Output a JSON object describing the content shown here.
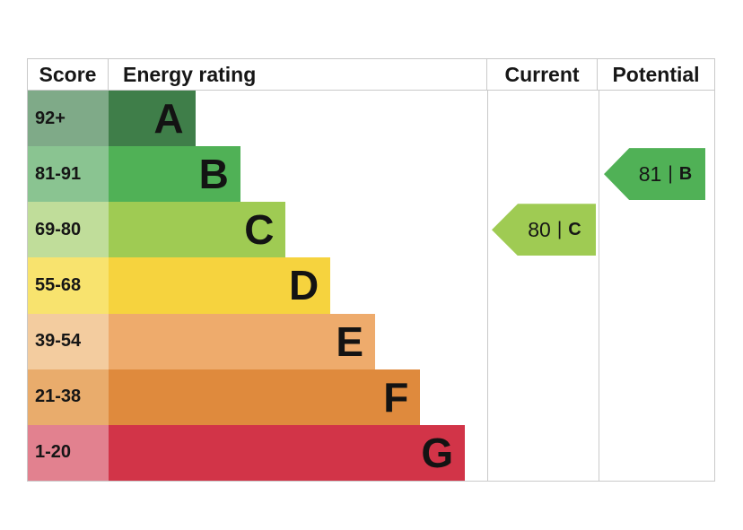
{
  "header": {
    "score": "Score",
    "rating": "Energy rating",
    "current": "Current",
    "potential": "Potential"
  },
  "bands": [
    {
      "score": "92+",
      "letter": "A",
      "width_pct": 22.9,
      "bar_color": "#3f7e49",
      "score_color": "#7faa88"
    },
    {
      "score": "81-91",
      "letter": "B",
      "width_pct": 34.8,
      "bar_color": "#50b156",
      "score_color": "#8ac491"
    },
    {
      "score": "69-80",
      "letter": "C",
      "width_pct": 46.8,
      "bar_color": "#9fcb53",
      "score_color": "#c0dd9a"
    },
    {
      "score": "55-68",
      "letter": "D",
      "width_pct": 58.6,
      "bar_color": "#f6d33e",
      "score_color": "#f8e36e"
    },
    {
      "score": "39-54",
      "letter": "E",
      "width_pct": 70.4,
      "bar_color": "#eeab6c",
      "score_color": "#f3cc9f"
    },
    {
      "score": "21-38",
      "letter": "F",
      "width_pct": 82.3,
      "bar_color": "#df8a3d",
      "score_color": "#e9ac6c"
    },
    {
      "score": "1-20",
      "letter": "G",
      "width_pct": 94.1,
      "bar_color": "#d23448",
      "score_color": "#e2818f"
    }
  ],
  "current": {
    "value": "80",
    "separator": "|",
    "letter": "C",
    "row": 2,
    "color": "#9fcb53"
  },
  "potential": {
    "value": "81",
    "separator": "|",
    "letter": "B",
    "row": 1,
    "color": "#50b156"
  },
  "border_color": "#c9c9c9",
  "chart_data": {
    "type": "bar",
    "title": "Energy rating",
    "orientation": "horizontal",
    "categories": [
      "A",
      "B",
      "C",
      "D",
      "E",
      "F",
      "G"
    ],
    "score_ranges": [
      "92+",
      "81-91",
      "69-80",
      "55-68",
      "39-54",
      "21-38",
      "1-20"
    ],
    "values": [
      22.9,
      34.8,
      46.8,
      58.6,
      70.4,
      82.3,
      94.1
    ],
    "value_unit": "relative bar length (% of rating column)",
    "bar_colors": [
      "#3f7e49",
      "#50b156",
      "#9fcb53",
      "#f6d33e",
      "#eeab6c",
      "#df8a3d",
      "#d23448"
    ],
    "markers": [
      {
        "name": "Current",
        "value": 80,
        "band": "C",
        "color": "#9fcb53"
      },
      {
        "name": "Potential",
        "value": 81,
        "band": "B",
        "color": "#50b156"
      }
    ],
    "columns": [
      "Score",
      "Energy rating",
      "Current",
      "Potential"
    ],
    "grid": false,
    "legend": false
  }
}
